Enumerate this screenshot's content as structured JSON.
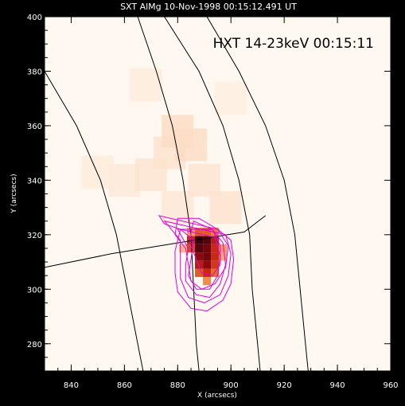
{
  "figure": {
    "title": "SXT AlMg 10-Nov-1998 00:15:12.491 UT",
    "overlay_label": "HXT 14-23keV 00:15:11",
    "xlabel": "X (arcsecs)",
    "ylabel": "Y (arcsecs)",
    "x_ticks": [
      "840",
      "860",
      "880",
      "900",
      "920",
      "940",
      "960"
    ],
    "y_ticks": [
      "280",
      "300",
      "320",
      "340",
      "360",
      "380",
      "400"
    ]
  },
  "axes": {
    "x_range": [
      830,
      960
    ],
    "y_range": [
      270,
      400
    ],
    "x_tick_values": [
      840,
      860,
      880,
      900,
      920,
      940,
      960
    ],
    "y_tick_values": [
      280,
      300,
      320,
      340,
      360,
      380,
      400
    ]
  },
  "colors": {
    "background": "#000000",
    "image_base": "#fff8f0",
    "contours": "#e000e0",
    "grid_lines": "#000000"
  },
  "image_pixels": [
    {
      "x": 888,
      "y": 318,
      "v": 1.0
    },
    {
      "x": 891,
      "y": 318,
      "v": 0.95
    },
    {
      "x": 885,
      "y": 318,
      "v": 0.7
    },
    {
      "x": 894,
      "y": 318,
      "v": 0.75
    },
    {
      "x": 888,
      "y": 315,
      "v": 0.95
    },
    {
      "x": 891,
      "y": 315,
      "v": 0.9
    },
    {
      "x": 885,
      "y": 315,
      "v": 0.6
    },
    {
      "x": 894,
      "y": 315,
      "v": 0.7
    },
    {
      "x": 888,
      "y": 312,
      "v": 0.85
    },
    {
      "x": 891,
      "y": 312,
      "v": 0.9
    },
    {
      "x": 894,
      "y": 312,
      "v": 0.7
    },
    {
      "x": 888,
      "y": 309,
      "v": 0.75
    },
    {
      "x": 891,
      "y": 309,
      "v": 0.85
    },
    {
      "x": 894,
      "y": 309,
      "v": 0.65
    },
    {
      "x": 891,
      "y": 306,
      "v": 0.7
    },
    {
      "x": 888,
      "y": 306,
      "v": 0.55
    },
    {
      "x": 894,
      "y": 306,
      "v": 0.5
    },
    {
      "x": 891,
      "y": 303,
      "v": 0.4
    },
    {
      "x": 888,
      "y": 321,
      "v": 0.55
    },
    {
      "x": 891,
      "y": 321,
      "v": 0.55
    },
    {
      "x": 894,
      "y": 321,
      "v": 0.45
    },
    {
      "x": 885,
      "y": 321,
      "v": 0.35
    },
    {
      "x": 897,
      "y": 315,
      "v": 0.35
    },
    {
      "x": 897,
      "y": 312,
      "v": 0.3
    },
    {
      "x": 882,
      "y": 315,
      "v": 0.25
    },
    {
      "x": 880,
      "y": 358,
      "v": 0.12
    },
    {
      "x": 885,
      "y": 353,
      "v": 0.12
    },
    {
      "x": 877,
      "y": 350,
      "v": 0.1
    },
    {
      "x": 870,
      "y": 342,
      "v": 0.09
    },
    {
      "x": 860,
      "y": 340,
      "v": 0.07
    },
    {
      "x": 850,
      "y": 343,
      "v": 0.06
    },
    {
      "x": 890,
      "y": 340,
      "v": 0.09
    },
    {
      "x": 898,
      "y": 330,
      "v": 0.1
    },
    {
      "x": 868,
      "y": 375,
      "v": 0.06
    },
    {
      "x": 900,
      "y": 370,
      "v": 0.05
    },
    {
      "x": 880,
      "y": 330,
      "v": 0.08
    }
  ],
  "contours": [
    [
      [
        886,
        325
      ],
      [
        893,
        322
      ],
      [
        896,
        316
      ],
      [
        896,
        309
      ],
      [
        893,
        305
      ],
      [
        889,
        306
      ],
      [
        887,
        311
      ],
      [
        885,
        316
      ],
      [
        885,
        321
      ]
    ],
    [
      [
        880,
        326
      ],
      [
        888,
        326
      ],
      [
        895,
        322
      ],
      [
        899,
        316
      ],
      [
        898,
        308
      ],
      [
        894,
        302
      ],
      [
        889,
        300
      ],
      [
        885,
        303
      ],
      [
        884,
        309
      ],
      [
        883,
        315
      ],
      [
        879,
        320
      ]
    ],
    [
      [
        881,
        322
      ],
      [
        886,
        318
      ],
      [
        885,
        311
      ],
      [
        884,
        305
      ],
      [
        887,
        300
      ],
      [
        892,
        300
      ],
      [
        895,
        305
      ],
      [
        896,
        312
      ],
      [
        894,
        319
      ]
    ],
    [
      [
        880,
        322
      ],
      [
        884,
        315
      ],
      [
        883,
        309
      ],
      [
        883,
        303
      ],
      [
        887,
        298
      ],
      [
        892,
        297
      ],
      [
        896,
        302
      ],
      [
        898,
        309
      ],
      [
        897,
        317
      ],
      [
        893,
        322
      ]
    ],
    [
      [
        875,
        325
      ],
      [
        881,
        318
      ],
      [
        881,
        311
      ],
      [
        881,
        304
      ],
      [
        884,
        297
      ],
      [
        890,
        295
      ],
      [
        896,
        298
      ],
      [
        899,
        305
      ],
      [
        900,
        313
      ],
      [
        898,
        320
      ]
    ],
    [
      [
        873,
        327
      ],
      [
        875,
        324
      ],
      [
        881,
        322
      ],
      [
        879,
        314
      ],
      [
        879,
        306
      ],
      [
        880,
        299
      ],
      [
        885,
        293
      ],
      [
        891,
        292
      ],
      [
        897,
        296
      ],
      [
        900,
        302
      ],
      [
        901,
        311
      ],
      [
        900,
        318
      ],
      [
        895,
        322
      ]
    ]
  ],
  "grid_lines": [
    [
      [
        830,
        380
      ],
      [
        842,
        360
      ],
      [
        851,
        340
      ],
      [
        857,
        320
      ],
      [
        861,
        300
      ],
      [
        865,
        280
      ],
      [
        867,
        270
      ]
    ],
    [
      [
        865,
        400
      ],
      [
        872,
        380
      ],
      [
        878,
        360
      ],
      [
        882,
        340
      ],
      [
        885,
        320
      ],
      [
        886,
        300
      ],
      [
        887,
        280
      ],
      [
        888,
        270
      ]
    ],
    [
      [
        875,
        400
      ],
      [
        888,
        380
      ],
      [
        897,
        360
      ],
      [
        903,
        340
      ],
      [
        907,
        320
      ],
      [
        908,
        300
      ],
      [
        910,
        280
      ],
      [
        911,
        270
      ]
    ],
    [
      [
        891,
        400
      ],
      [
        903,
        380
      ],
      [
        913,
        360
      ],
      [
        920,
        340
      ],
      [
        924,
        320
      ],
      [
        926,
        300
      ],
      [
        928,
        280
      ],
      [
        929,
        270
      ]
    ],
    [
      [
        830,
        308
      ],
      [
        855,
        313
      ],
      [
        880,
        317
      ],
      [
        905,
        321
      ],
      [
        913,
        327
      ]
    ]
  ]
}
